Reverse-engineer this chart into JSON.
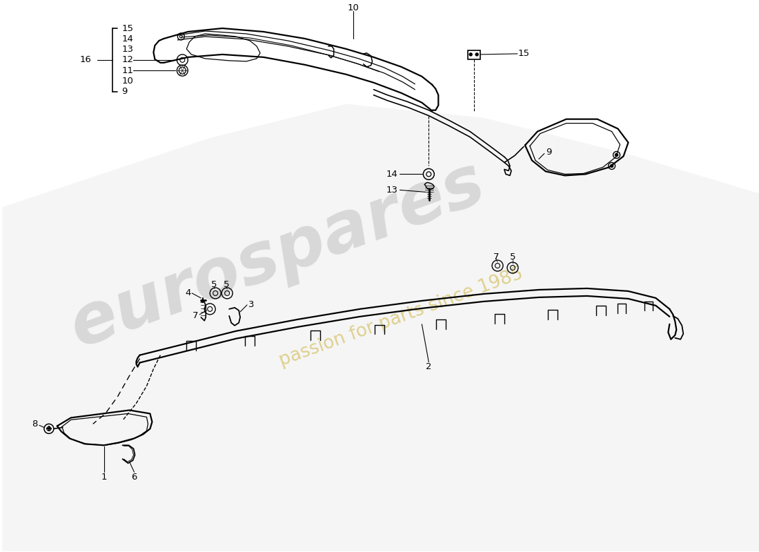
{
  "bg_color": "#ffffff",
  "lc": "#000000",
  "watermark1": "eurospares",
  "watermark2": "passion for parts since 1985",
  "wm1_color": "#c0c0c0",
  "wm2_color": "#d4c060",
  "bracket_items": [
    "15",
    "14",
    "13",
    "12",
    "11",
    "10",
    "9"
  ],
  "bracket_label": "16"
}
